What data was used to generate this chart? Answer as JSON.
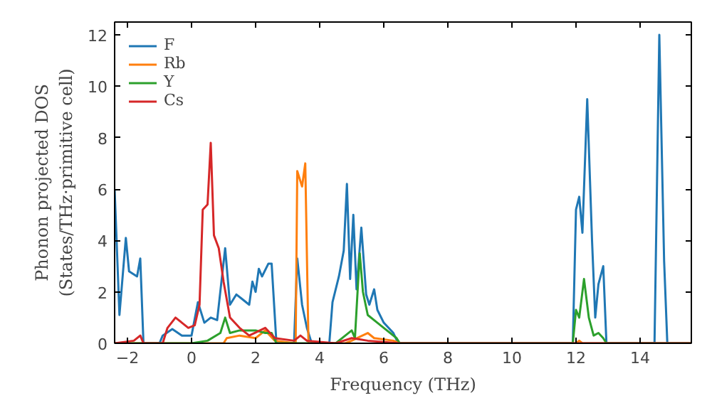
{
  "chart_data": {
    "type": "line",
    "xlabel": "Frequency (THz)",
    "ylabel": "Phonon projected DOS\n(States/THz·primitive cell)",
    "xlim": [
      -2.4,
      15.6
    ],
    "ylim": [
      0,
      12.5
    ],
    "xticks": [
      -2,
      0,
      2,
      4,
      6,
      8,
      10,
      12,
      14
    ],
    "yticks": [
      0,
      2,
      4,
      6,
      8,
      10,
      12
    ],
    "legend": "top left",
    "grid": false,
    "series": [
      {
        "name": "F",
        "color": "#1f77b4",
        "x": [
          -2.4,
          -2.25,
          -2.05,
          -1.95,
          -1.7,
          -1.6,
          -1.5,
          -1.0,
          -0.9,
          -0.6,
          -0.3,
          0,
          0.2,
          0.4,
          0.6,
          0.8,
          1.05,
          1.2,
          1.4,
          1.6,
          1.8,
          1.9,
          2.0,
          2.1,
          2.2,
          2.4,
          2.5,
          2.65,
          3.2,
          3.3,
          3.45,
          3.6,
          3.75,
          4.3,
          4.4,
          4.6,
          4.75,
          4.85,
          4.95,
          5.05,
          5.15,
          5.3,
          5.45,
          5.55,
          5.7,
          5.8,
          6.0,
          6.3,
          6.45,
          11.9,
          12.0,
          12.1,
          12.2,
          12.35,
          12.5,
          12.6,
          12.7,
          12.85,
          12.95,
          14.45,
          14.6,
          14.75,
          14.85,
          15.6
        ],
        "values": [
          6.0,
          1.1,
          4.1,
          2.8,
          2.6,
          3.3,
          0,
          0,
          0.3,
          0.55,
          0.3,
          0.3,
          1.6,
          0.8,
          1.0,
          0.9,
          3.7,
          1.5,
          1.9,
          1.7,
          1.5,
          2.4,
          2.0,
          2.9,
          2.6,
          3.1,
          3.1,
          0,
          0,
          3.3,
          1.5,
          0.6,
          0,
          0,
          1.6,
          2.6,
          3.6,
          6.2,
          2.5,
          5.0,
          2.1,
          4.5,
          1.9,
          1.5,
          2.1,
          1.3,
          0.8,
          0.4,
          0,
          0,
          5.2,
          5.7,
          4.3,
          9.5,
          4.0,
          1.0,
          2.3,
          3.0,
          0,
          0,
          12.0,
          3.2,
          0,
          0
        ]
      },
      {
        "name": "Rb",
        "color": "#ff7f0e",
        "x": [
          -2.4,
          1.0,
          1.1,
          1.5,
          2.0,
          2.3,
          2.6,
          3.25,
          3.3,
          3.45,
          3.55,
          3.65,
          4.8,
          5.0,
          5.5,
          5.7,
          6.3,
          6.5,
          12.0,
          12.1,
          12.2,
          15.6
        ],
        "values": [
          0,
          0,
          0.2,
          0.3,
          0.2,
          0.5,
          0.1,
          0,
          6.7,
          6.1,
          7.0,
          0,
          0,
          0.1,
          0.4,
          0.2,
          0.1,
          0,
          0,
          0.1,
          0,
          0
        ]
      },
      {
        "name": "Y",
        "color": "#2ca02c",
        "x": [
          -2.4,
          0,
          0.5,
          0.9,
          1.05,
          1.2,
          1.5,
          2.0,
          2.3,
          2.5,
          2.65,
          4.5,
          4.8,
          5.0,
          5.1,
          5.25,
          5.35,
          5.5,
          5.8,
          6.0,
          6.4,
          6.5,
          11.9,
          12.0,
          12.1,
          12.25,
          12.4,
          12.55,
          12.7,
          12.85,
          12.95,
          15.6
        ],
        "values": [
          0,
          0,
          0.1,
          0.4,
          1.0,
          0.4,
          0.5,
          0.5,
          0.4,
          0.4,
          0,
          0,
          0.3,
          0.5,
          0.2,
          3.5,
          2.0,
          1.1,
          0.8,
          0.6,
          0.2,
          0,
          0,
          1.3,
          1.0,
          2.5,
          1.0,
          0.3,
          0.4,
          0.2,
          0,
          0
        ]
      },
      {
        "name": "Cs",
        "color": "#d62728",
        "x": [
          -2.4,
          -1.8,
          -1.6,
          -1.5,
          -0.9,
          -0.75,
          -0.5,
          -0.3,
          -0.1,
          0.1,
          0.25,
          0.35,
          0.5,
          0.6,
          0.7,
          0.85,
          1.0,
          1.2,
          1.5,
          1.8,
          2.3,
          2.6,
          3.2,
          3.4,
          3.6,
          4.5,
          5.0,
          5.5,
          6.5,
          15.6
        ],
        "values": [
          0,
          0.1,
          0.3,
          0,
          0,
          0.6,
          1.0,
          0.8,
          0.6,
          0.7,
          1.5,
          5.2,
          5.4,
          7.8,
          4.2,
          3.7,
          2.4,
          1.0,
          0.6,
          0.3,
          0.6,
          0.2,
          0.1,
          0.3,
          0.1,
          0,
          0.2,
          0.1,
          0,
          0
        ]
      }
    ]
  }
}
